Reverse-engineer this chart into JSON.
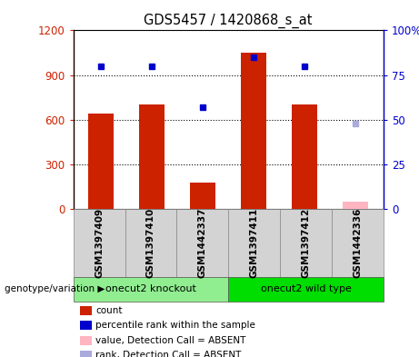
{
  "title": "GDS5457 / 1420868_s_at",
  "samples": [
    "GSM1397409",
    "GSM1397410",
    "GSM1442337",
    "GSM1397411",
    "GSM1397412",
    "GSM1442336"
  ],
  "counts": [
    640,
    700,
    175,
    1050,
    700,
    50
  ],
  "percentile_ranks": [
    80,
    80,
    57,
    85,
    80,
    48
  ],
  "absent_flags": [
    false,
    false,
    false,
    false,
    false,
    true
  ],
  "groups": [
    {
      "label": "onecut2 knockout",
      "samples": [
        0,
        1,
        2
      ],
      "color": "#90EE90"
    },
    {
      "label": "onecut2 wild type",
      "samples": [
        3,
        4,
        5
      ],
      "color": "#00DD00"
    }
  ],
  "group_label": "genotype/variation",
  "ylim_left": [
    0,
    1200
  ],
  "ylim_right": [
    0,
    100
  ],
  "yticks_left": [
    0,
    300,
    600,
    900,
    1200
  ],
  "yticks_right": [
    0,
    25,
    50,
    75,
    100
  ],
  "yticklabels_right": [
    "0",
    "25",
    "50",
    "75",
    "100%"
  ],
  "bar_color_normal": "#CC2200",
  "bar_color_absent": "#FFB6C1",
  "dot_color_normal": "#0000CC",
  "dot_color_absent": "#AAAADD",
  "bar_width": 0.5,
  "legend_items": [
    {
      "label": "count",
      "color": "#CC2200"
    },
    {
      "label": "percentile rank within the sample",
      "color": "#0000CC"
    },
    {
      "label": "value, Detection Call = ABSENT",
      "color": "#FFB6C1"
    },
    {
      "label": "rank, Detection Call = ABSENT",
      "color": "#AAAADD"
    }
  ]
}
